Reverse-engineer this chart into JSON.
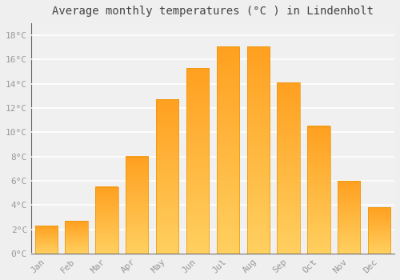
{
  "title": "Average monthly temperatures (°C ) in Lindenholt",
  "months": [
    "Jan",
    "Feb",
    "Mar",
    "Apr",
    "May",
    "Jun",
    "Jul",
    "Aug",
    "Sep",
    "Oct",
    "Nov",
    "Dec"
  ],
  "values": [
    2.3,
    2.7,
    5.5,
    8.0,
    12.7,
    15.3,
    17.1,
    17.1,
    14.1,
    10.5,
    6.0,
    3.8
  ],
  "bar_color_bottom": "#FFC125",
  "bar_color_top": "#FFB347",
  "bar_edge_color": "#E8960A",
  "background_color": "#EFEFEF",
  "plot_bg_color": "#F0F0F0",
  "grid_color": "#FFFFFF",
  "ylim": [
    0,
    19
  ],
  "yticks": [
    0,
    2,
    4,
    6,
    8,
    10,
    12,
    14,
    16,
    18
  ],
  "ytick_labels": [
    "0°C",
    "2°C",
    "4°C",
    "6°C",
    "8°C",
    "10°C",
    "12°C",
    "14°C",
    "16°C",
    "18°C"
  ],
  "title_fontsize": 10,
  "tick_fontsize": 8,
  "tick_color": "#999999",
  "font_family": "monospace",
  "bar_width": 0.75
}
